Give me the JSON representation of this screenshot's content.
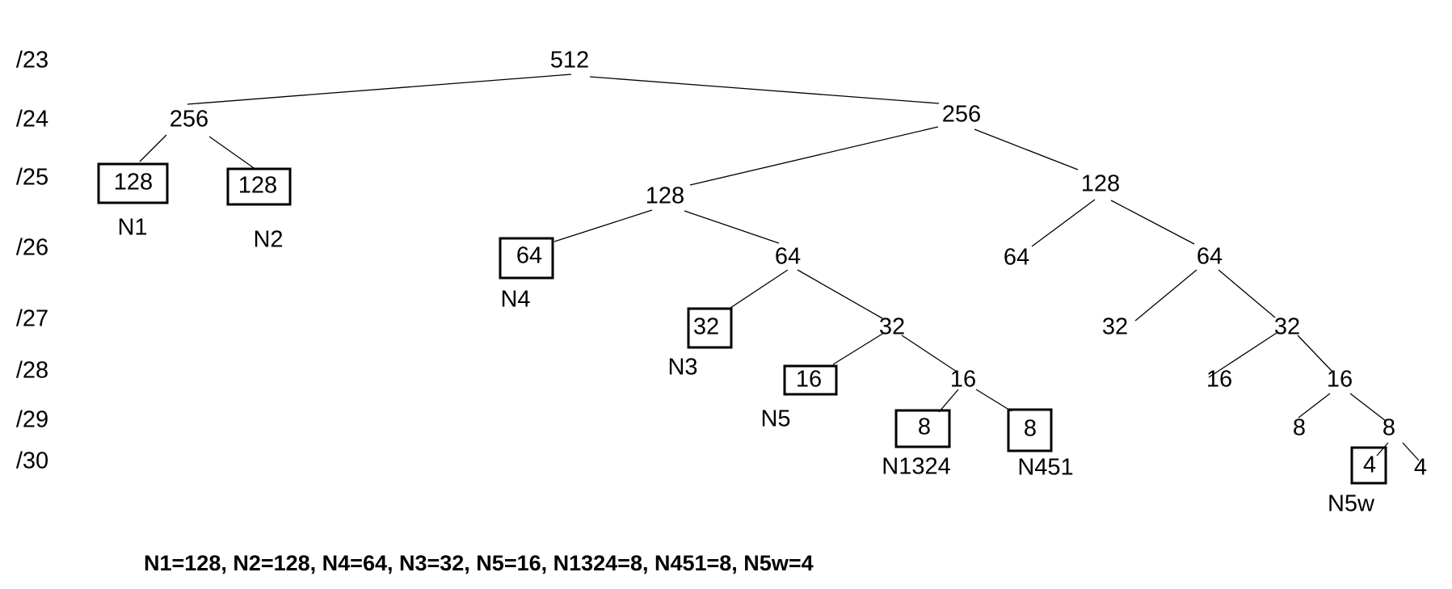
{
  "prefixes": [
    "/23",
    "/24",
    "/25",
    "/26",
    "/27",
    "/28",
    "/29",
    "/30"
  ],
  "nodes": [
    {
      "id": "r",
      "value": "512"
    },
    {
      "id": "a",
      "value": "256"
    },
    {
      "id": "b",
      "value": "256"
    },
    {
      "id": "a1",
      "value": "128",
      "boxed": true,
      "name": "N1"
    },
    {
      "id": "a2",
      "value": "128",
      "boxed": true,
      "name": "N2"
    },
    {
      "id": "b1",
      "value": "128"
    },
    {
      "id": "b2",
      "value": "128"
    },
    {
      "id": "b1a",
      "value": "64",
      "boxed": true,
      "name": "N4"
    },
    {
      "id": "b1b",
      "value": "64"
    },
    {
      "id": "b2a",
      "value": "64"
    },
    {
      "id": "b2b",
      "value": "64"
    },
    {
      "id": "b1ba",
      "value": "32",
      "boxed": true,
      "name": "N3"
    },
    {
      "id": "b1bb",
      "value": "32"
    },
    {
      "id": "b2ba",
      "value": "32"
    },
    {
      "id": "b2bb",
      "value": "32"
    },
    {
      "id": "b1bba",
      "value": "16",
      "boxed": true,
      "name": "N5"
    },
    {
      "id": "b1bbb",
      "value": "16"
    },
    {
      "id": "b2bba",
      "value": "16"
    },
    {
      "id": "b2bbb",
      "value": "16"
    },
    {
      "id": "b1bbba",
      "value": "8",
      "boxed": true,
      "name": "N1324"
    },
    {
      "id": "b1bbbb",
      "value": "8",
      "boxed": true,
      "name": "N451"
    },
    {
      "id": "b2bbba",
      "value": "8"
    },
    {
      "id": "b2bbbb",
      "value": "8"
    },
    {
      "id": "x4a",
      "value": "4",
      "boxed": true,
      "name": "N5w"
    },
    {
      "id": "x4b",
      "value": "4"
    }
  ],
  "edges": [
    [
      "r",
      "a"
    ],
    [
      "r",
      "b"
    ],
    [
      "a",
      "a1"
    ],
    [
      "a",
      "a2"
    ],
    [
      "b",
      "b1"
    ],
    [
      "b",
      "b2"
    ],
    [
      "b1",
      "b1a"
    ],
    [
      "b1",
      "b1b"
    ],
    [
      "b2",
      "b2a"
    ],
    [
      "b2",
      "b2b"
    ],
    [
      "b1b",
      "b1ba"
    ],
    [
      "b1b",
      "b1bb"
    ],
    [
      "b2b",
      "b2ba"
    ],
    [
      "b2b",
      "b2bb"
    ],
    [
      "b1bb",
      "b1bba"
    ],
    [
      "b1bb",
      "b1bbb"
    ],
    [
      "b2bb",
      "b2bba"
    ],
    [
      "b2bb",
      "b2bbb"
    ],
    [
      "b1bbb",
      "b1bbba"
    ],
    [
      "b1bbb",
      "b1bbbb"
    ],
    [
      "b2bbb",
      "b2bbba"
    ],
    [
      "b2bbb",
      "b2bbbb"
    ],
    [
      "b2bbbb",
      "x4a"
    ],
    [
      "b2bbbb",
      "x4b"
    ]
  ],
  "summary": "N1=128, N2=128, N4=64, N3=32, N5=16, N1324=8, N451=8, N5w=4"
}
